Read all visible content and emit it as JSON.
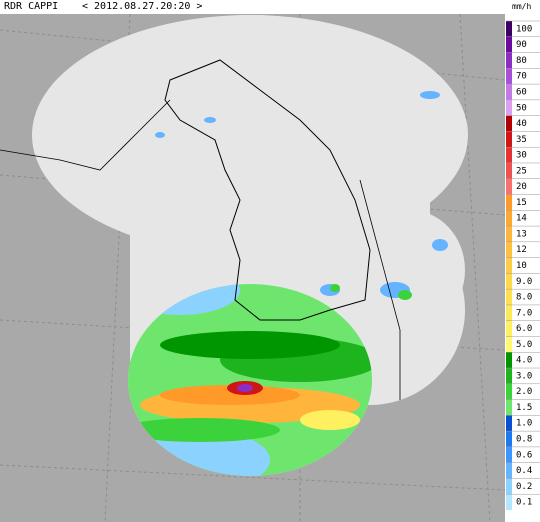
{
  "header": {
    "title": "RDR CAPPI",
    "datetime": "< 2012.08.27.20:20 >"
  },
  "legend": {
    "unit": "mm/h",
    "items": [
      {
        "label": "100",
        "color": "#3c0064"
      },
      {
        "label": "90",
        "color": "#6a0aa0"
      },
      {
        "label": "80",
        "color": "#8c2ec4"
      },
      {
        "label": "70",
        "color": "#a850d8"
      },
      {
        "label": "60",
        "color": "#c47ae6"
      },
      {
        "label": "50",
        "color": "#dca0f0"
      },
      {
        "label": "40",
        "color": "#b40000"
      },
      {
        "label": "35",
        "color": "#d21414"
      },
      {
        "label": "30",
        "color": "#e63232"
      },
      {
        "label": "25",
        "color": "#f05050"
      },
      {
        "label": "20",
        "color": "#f87070"
      },
      {
        "label": "15",
        "color": "#ff9a28"
      },
      {
        "label": "14",
        "color": "#ffa830"
      },
      {
        "label": "13",
        "color": "#ffb43c"
      },
      {
        "label": "12",
        "color": "#ffc040"
      },
      {
        "label": "10",
        "color": "#ffcc48"
      },
      {
        "label": "9.0",
        "color": "#ffd84c"
      },
      {
        "label": "8.0",
        "color": "#ffe050"
      },
      {
        "label": "7.0",
        "color": "#ffe858"
      },
      {
        "label": "6.0",
        "color": "#fff060"
      },
      {
        "label": "5.0",
        "color": "#fff870"
      },
      {
        "label": "4.0",
        "color": "#009600"
      },
      {
        "label": "3.0",
        "color": "#1eb41e"
      },
      {
        "label": "2.0",
        "color": "#3cd23c"
      },
      {
        "label": "1.5",
        "color": "#6ee66e"
      },
      {
        "label": "1.0",
        "color": "#0a50d2"
      },
      {
        "label": "0.8",
        "color": "#1e78f0"
      },
      {
        "label": "0.6",
        "color": "#3c96ff"
      },
      {
        "label": "0.4",
        "color": "#64b4ff"
      },
      {
        "label": "0.2",
        "color": "#8cd2ff"
      },
      {
        "label": "0.1",
        "color": "#b4e6ff"
      }
    ]
  }
}
